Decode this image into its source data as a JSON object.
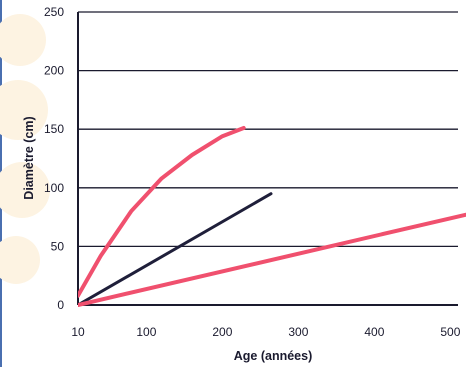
{
  "chart_data": {
    "type": "line",
    "title": "",
    "xlabel": "Age (années)",
    "ylabel": "Diamètre (cm)",
    "xlim": [
      10,
      510
    ],
    "ylim": [
      0,
      250
    ],
    "x_ticks": [
      10,
      100,
      200,
      300,
      400,
      500
    ],
    "x_tick_labels": [
      "10",
      "100",
      "200",
      "300",
      "400",
      "500"
    ],
    "y_ticks": [
      0,
      50,
      100,
      150,
      200,
      250
    ],
    "y_tick_labels": [
      "0",
      "50",
      "100",
      "150",
      "200",
      "250"
    ],
    "grid": "horizontal",
    "colors": {
      "axis": "#1a1a2e",
      "grid": "#1a1a2e",
      "text": "#1a1a2e",
      "left_border": "#4a6fb0",
      "watermark": "#fdf3e2"
    },
    "series": [
      {
        "color": "#f0506e",
        "points": [
          [
            10,
            8
          ],
          [
            40,
            42
          ],
          [
            80,
            80
          ],
          [
            120,
            108
          ],
          [
            160,
            128
          ],
          [
            200,
            144
          ],
          [
            228,
            151
          ]
        ]
      },
      {
        "color": "#1f1f3a",
        "points": [
          [
            10,
            0
          ],
          [
            264,
            95
          ]
        ]
      },
      {
        "color": "#f0506e",
        "points": [
          [
            10,
            0
          ],
          [
            520,
            77
          ]
        ]
      }
    ]
  }
}
